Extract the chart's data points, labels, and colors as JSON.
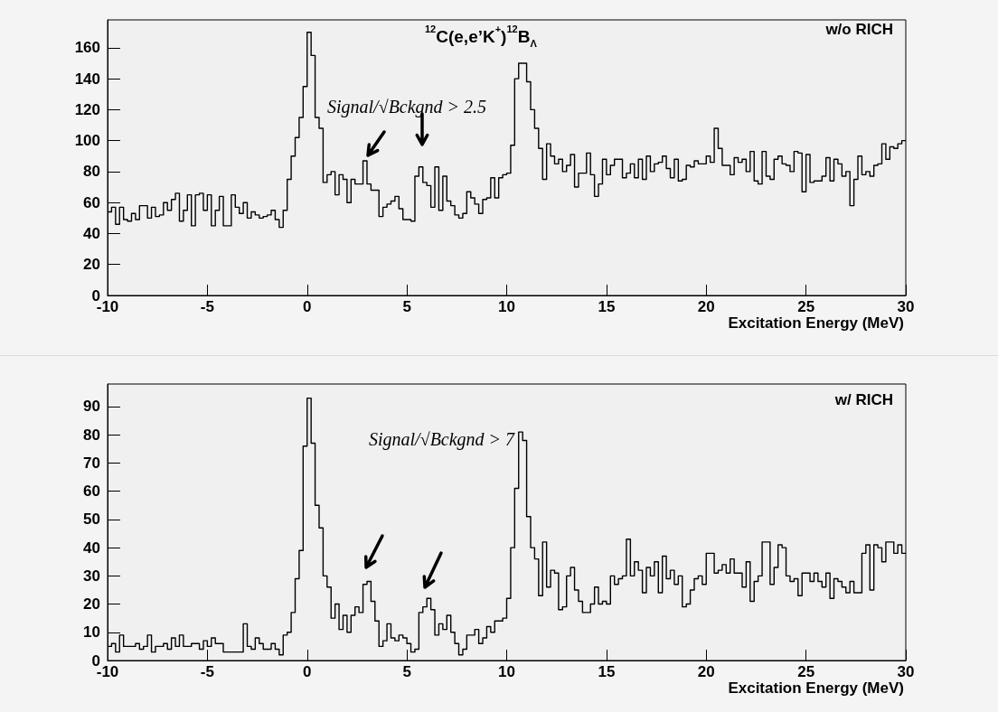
{
  "chart_data": [
    {
      "type": "histogram",
      "xlabel": "Excitation Energy (MeV)",
      "color": "#000000",
      "xlim": [
        -10,
        30
      ],
      "xticks": [
        -10,
        -5,
        0,
        5,
        10,
        15,
        20,
        25,
        30
      ],
      "ylim": [
        0,
        178
      ],
      "yticks": [
        0,
        20,
        40,
        60,
        80,
        100,
        120,
        140,
        160
      ],
      "annotations": [
        "$^{12}$C(e,e’K$^{+}$)$^{12}$B$_{Λ}$",
        "w/o RICH",
        "Signal/√Bckgnd > 2.5"
      ],
      "bins": [
        -10,
        -9.8,
        -9.6,
        -9.4,
        -9.2,
        -9,
        -8.8,
        -8.6,
        -8.4,
        -8.2,
        -8,
        -7.8,
        -7.6,
        -7.4,
        -7.2,
        -7,
        -6.8,
        -6.6,
        -6.4,
        -6.2,
        -6,
        -5.8,
        -5.6,
        -5.4,
        -5.2,
        -5,
        -4.8,
        -4.6,
        -4.4,
        -4.2,
        -4,
        -3.8,
        -3.6,
        -3.4,
        -3.2,
        -3,
        -2.8,
        -2.6,
        -2.4,
        -2.2,
        -2,
        -1.8,
        -1.6,
        -1.4,
        -1.2,
        -1,
        -0.8,
        -0.6,
        -0.4,
        -0.2,
        0,
        0.2,
        0.4,
        0.6,
        0.8,
        1,
        1.2,
        1.4,
        1.6,
        1.8,
        2,
        2.2,
        2.4,
        2.6,
        2.8,
        3,
        3.2,
        3.4,
        3.6,
        3.8,
        4,
        4.2,
        4.4,
        4.6,
        4.8,
        5,
        5.2,
        5.4,
        5.6,
        5.8,
        6,
        6.2,
        6.4,
        6.6,
        6.8,
        7,
        7.2,
        7.4,
        7.6,
        7.8,
        8,
        8.2,
        8.4,
        8.6,
        8.8,
        9,
        9.2,
        9.4,
        9.6,
        9.8,
        10,
        10.2,
        10.4,
        10.6,
        10.8,
        11,
        11.2,
        11.4,
        11.6,
        11.8,
        12,
        12.2,
        12.4,
        12.6,
        12.8,
        13,
        13.2,
        13.4,
        13.6,
        13.8,
        14,
        14.2,
        14.4,
        14.6,
        14.8,
        15,
        15.2,
        15.4,
        15.6,
        15.8,
        16,
        16.2,
        16.4,
        16.6,
        16.8,
        17,
        17.2,
        17.4,
        17.6,
        17.8,
        18,
        18.2,
        18.4,
        18.6,
        18.8,
        19,
        19.2,
        19.4,
        19.6,
        19.8,
        20,
        20.2,
        20.4,
        20.6,
        20.8,
        21,
        21.2,
        21.4,
        21.6,
        21.8,
        22,
        22.2,
        22.4,
        22.6,
        22.8,
        23,
        23.2,
        23.4,
        23.6,
        23.8,
        24,
        24.2,
        24.4,
        24.6,
        24.8,
        25,
        25.2,
        25.4,
        25.6,
        25.8,
        26,
        26.2,
        26.4,
        26.6,
        26.8,
        27,
        27.2,
        27.4,
        27.6,
        27.8,
        28,
        28.2,
        28.4,
        28.6,
        28.8,
        29,
        29.2,
        29.4,
        29.6,
        29.8,
        30
      ],
      "values": [
        54,
        57,
        46,
        57,
        49,
        48,
        53,
        49,
        58,
        58,
        50,
        57,
        51,
        52,
        60,
        55,
        62,
        66,
        48,
        55,
        65,
        45,
        65,
        66,
        55,
        65,
        45,
        55,
        64,
        45,
        45,
        65,
        57,
        53,
        60,
        50,
        54,
        52,
        50,
        51,
        52,
        55,
        49,
        44,
        55,
        75,
        90,
        102,
        115,
        135,
        170,
        155,
        115,
        108,
        73,
        78,
        80,
        65,
        78,
        75,
        60,
        75,
        72,
        72,
        87,
        72,
        68,
        68,
        51,
        57,
        59,
        61,
        64,
        56,
        49,
        49,
        48,
        77,
        83,
        73,
        71,
        57,
        83,
        55,
        77,
        61,
        58,
        52,
        50,
        53,
        67,
        63,
        59,
        53,
        62,
        63,
        76,
        63,
        76,
        78,
        79,
        97,
        140,
        150,
        150,
        138,
        120,
        108,
        95,
        75,
        98,
        90,
        85,
        88,
        80,
        84,
        91,
        70,
        79,
        79,
        92,
        78,
        64,
        72,
        88,
        78,
        84,
        88,
        88,
        76,
        79,
        85,
        76,
        88,
        75,
        90,
        80,
        85,
        86,
        90,
        82,
        76,
        88,
        74,
        75,
        84,
        83,
        87,
        85,
        85,
        90,
        86,
        108,
        95,
        84,
        84,
        78,
        89,
        86,
        88,
        80,
        93,
        74,
        72,
        93,
        77,
        75,
        88,
        90,
        85,
        84,
        80,
        93,
        92,
        67,
        91,
        73,
        74,
        74,
        77,
        89,
        74,
        88,
        85,
        77,
        80,
        58,
        75,
        90,
        78,
        80,
        77,
        84,
        85,
        98,
        88,
        96,
        95,
        98,
        100
      ]
    },
    {
      "type": "histogram",
      "xlabel": "Excitation Energy (MeV)",
      "color": "#000000",
      "xlim": [
        -10,
        30
      ],
      "xticks": [
        -10,
        -5,
        0,
        5,
        10,
        15,
        20,
        25,
        30
      ],
      "ylim": [
        0,
        98
      ],
      "yticks": [
        0,
        10,
        20,
        30,
        40,
        50,
        60,
        70,
        80,
        90
      ],
      "annotations": [
        "w/ RICH",
        "Signal/√Bckgnd > 7"
      ],
      "bins": [
        -10,
        -9.8,
        -9.6,
        -9.4,
        -9.2,
        -9,
        -8.8,
        -8.6,
        -8.4,
        -8.2,
        -8,
        -7.8,
        -7.6,
        -7.4,
        -7.2,
        -7,
        -6.8,
        -6.6,
        -6.4,
        -6.2,
        -6,
        -5.8,
        -5.6,
        -5.4,
        -5.2,
        -5,
        -4.8,
        -4.6,
        -4.4,
        -4.2,
        -4,
        -3.8,
        -3.6,
        -3.4,
        -3.2,
        -3,
        -2.8,
        -2.6,
        -2.4,
        -2.2,
        -2,
        -1.8,
        -1.6,
        -1.4,
        -1.2,
        -1,
        -0.8,
        -0.6,
        -0.4,
        -0.2,
        0,
        0.2,
        0.4,
        0.6,
        0.8,
        1,
        1.2,
        1.4,
        1.6,
        1.8,
        2,
        2.2,
        2.4,
        2.6,
        2.8,
        3,
        3.2,
        3.4,
        3.6,
        3.8,
        4,
        4.2,
        4.4,
        4.6,
        4.8,
        5,
        5.2,
        5.4,
        5.6,
        5.8,
        6,
        6.2,
        6.4,
        6.6,
        6.8,
        7,
        7.2,
        7.4,
        7.6,
        7.8,
        8,
        8.2,
        8.4,
        8.6,
        8.8,
        9,
        9.2,
        9.4,
        9.6,
        9.8,
        10,
        10.2,
        10.4,
        10.6,
        10.8,
        11,
        11.2,
        11.4,
        11.6,
        11.8,
        12,
        12.2,
        12.4,
        12.6,
        12.8,
        13,
        13.2,
        13.4,
        13.6,
        13.8,
        14,
        14.2,
        14.4,
        14.6,
        14.8,
        15,
        15.2,
        15.4,
        15.6,
        15.8,
        16,
        16.2,
        16.4,
        16.6,
        16.8,
        17,
        17.2,
        17.4,
        17.6,
        17.8,
        18,
        18.2,
        18.4,
        18.6,
        18.8,
        19,
        19.2,
        19.4,
        19.6,
        19.8,
        20,
        20.2,
        20.4,
        20.6,
        20.8,
        21,
        21.2,
        21.4,
        21.6,
        21.8,
        22,
        22.2,
        22.4,
        22.6,
        22.8,
        23,
        23.2,
        23.4,
        23.6,
        23.8,
        24,
        24.2,
        24.4,
        24.6,
        24.8,
        25,
        25.2,
        25.4,
        25.6,
        25.8,
        26,
        26.2,
        26.4,
        26.6,
        26.8,
        27,
        27.2,
        27.4,
        27.6,
        27.8,
        28,
        28.2,
        28.4,
        28.6,
        28.8,
        29,
        29.2,
        29.4,
        29.6,
        29.8,
        30
      ],
      "values": [
        5,
        6,
        3,
        9,
        5,
        5,
        5,
        6,
        4,
        5,
        9,
        3,
        5,
        5,
        6,
        4,
        8,
        5,
        9,
        5,
        5,
        6,
        6,
        4,
        7,
        5,
        8,
        6,
        6,
        3,
        3,
        3,
        3,
        3,
        13,
        5,
        4,
        8,
        6,
        4,
        4,
        6,
        4,
        2,
        9,
        10,
        17,
        29,
        39,
        76,
        93,
        77,
        55,
        47,
        30,
        26,
        15,
        20,
        11,
        16,
        10,
        16,
        19,
        17,
        27,
        28,
        21,
        14,
        5,
        7,
        13,
        8,
        7,
        9,
        8,
        6,
        3,
        4,
        17,
        19,
        22,
        18,
        9,
        13,
        11,
        16,
        10,
        6,
        2,
        4,
        9,
        9,
        11,
        6,
        8,
        12,
        10,
        14,
        14,
        15,
        22,
        40,
        61,
        81,
        78,
        51,
        40,
        36,
        23,
        42,
        26,
        32,
        31,
        18,
        19,
        30,
        33,
        25,
        21,
        17,
        17,
        20,
        26,
        20,
        21,
        20,
        30,
        27,
        29,
        30,
        43,
        30,
        35,
        32,
        24,
        33,
        30,
        35,
        24,
        37,
        29,
        32,
        27,
        30,
        19,
        20,
        25,
        29,
        30,
        27,
        38,
        38,
        31,
        32,
        34,
        31,
        36,
        31,
        31,
        26,
        35,
        21,
        28,
        30,
        42,
        42,
        27,
        33,
        41,
        40,
        30,
        28,
        29,
        23,
        31,
        31,
        28,
        31,
        28,
        26,
        31,
        22,
        29,
        28,
        26,
        24,
        28,
        24,
        24,
        38,
        41,
        25,
        41,
        40,
        35,
        42,
        42,
        38,
        41,
        38
      ]
    }
  ]
}
